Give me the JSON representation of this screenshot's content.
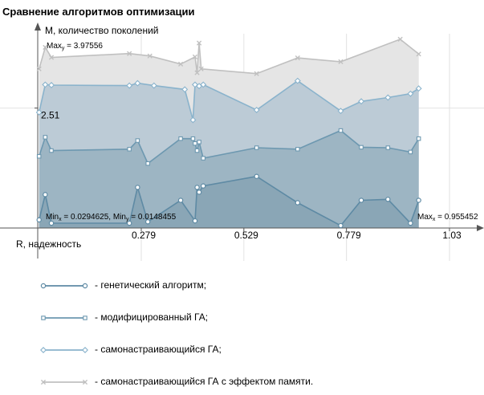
{
  "chart_data": {
    "type": "area",
    "title": "Сравнение алгоритмов оптимизации",
    "xlabel": "R, надежность",
    "ylabel": "M, количество поколений",
    "xlim": [
      0.0294625,
      1.05
    ],
    "ylim": [
      0,
      4.2
    ],
    "x_ticks": [
      0.279,
      0.529,
      0.779,
      1.03
    ],
    "y_marker_label": "2.51",
    "y_marker_value": 2.51,
    "annotations": {
      "max_y": "Max",
      "max_y_sub": "y",
      "max_y_value": " = 3.97556",
      "min_x": "Min",
      "min_x_sub": "x",
      "min_x_value": " = 0.0294625, ",
      "min_y": "Min",
      "min_y_sub": "y",
      "min_y_value": " = 0.0148455",
      "max_x": "Max",
      "max_x_sub": "x",
      "max_x_value": " = 0.955452"
    },
    "series": [
      {
        "name": "самонастраивающийся ГА с эффектом памяти.",
        "marker": "cross",
        "color": "#c0c0c0",
        "fill": "#e5e5e5",
        "points": [
          [
            0.03,
            3.33
          ],
          [
            0.045,
            3.78
          ],
          [
            0.06,
            3.57
          ],
          [
            0.25,
            3.65
          ],
          [
            0.3,
            3.6
          ],
          [
            0.375,
            3.43
          ],
          [
            0.41,
            3.58
          ],
          [
            0.415,
            3.25
          ],
          [
            0.42,
            3.87
          ],
          [
            0.425,
            3.33
          ],
          [
            0.56,
            3.23
          ],
          [
            0.66,
            3.56
          ],
          [
            0.765,
            3.48
          ],
          [
            0.91,
            3.95
          ],
          [
            0.955,
            3.64
          ]
        ]
      },
      {
        "name": "самонастраивающийся ГА;",
        "marker": "diamond",
        "color": "#8ab3cc",
        "fill": "#bccbd6",
        "points": [
          [
            0.03,
            2.42
          ],
          [
            0.045,
            3.0
          ],
          [
            0.06,
            2.99
          ],
          [
            0.25,
            2.98
          ],
          [
            0.27,
            3.03
          ],
          [
            0.31,
            2.98
          ],
          [
            0.385,
            2.9
          ],
          [
            0.405,
            2.26
          ],
          [
            0.41,
            3.0
          ],
          [
            0.42,
            2.97
          ],
          [
            0.43,
            3.0
          ],
          [
            0.56,
            2.47
          ],
          [
            0.66,
            3.08
          ],
          [
            0.765,
            2.45
          ],
          [
            0.815,
            2.65
          ],
          [
            0.88,
            2.73
          ],
          [
            0.935,
            2.81
          ],
          [
            0.955,
            2.92
          ]
        ]
      },
      {
        "name": "модифицированный ГА;",
        "marker": "square",
        "color": "#6d98b0",
        "fill": "#9db5c3",
        "points": [
          [
            0.03,
            1.5
          ],
          [
            0.045,
            1.9
          ],
          [
            0.06,
            1.62
          ],
          [
            0.25,
            1.65
          ],
          [
            0.27,
            1.83
          ],
          [
            0.295,
            1.35
          ],
          [
            0.375,
            1.87
          ],
          [
            0.405,
            1.87
          ],
          [
            0.41,
            1.77
          ],
          [
            0.415,
            1.62
          ],
          [
            0.42,
            1.8
          ],
          [
            0.43,
            1.46
          ],
          [
            0.56,
            1.68
          ],
          [
            0.66,
            1.65
          ],
          [
            0.765,
            2.04
          ],
          [
            0.815,
            1.69
          ],
          [
            0.88,
            1.68
          ],
          [
            0.935,
            1.59
          ],
          [
            0.955,
            1.87
          ]
        ]
      },
      {
        "name": "генетический алгоритм;",
        "marker": "circle",
        "color": "#5e8aa4",
        "fill": "#8aa6b6",
        "points": [
          [
            0.03,
            0.17
          ],
          [
            0.045,
            0.7
          ],
          [
            0.06,
            0.1
          ],
          [
            0.25,
            0.1
          ],
          [
            0.27,
            0.85
          ],
          [
            0.295,
            0.13
          ],
          [
            0.375,
            0.58
          ],
          [
            0.41,
            0.15
          ],
          [
            0.415,
            0.85
          ],
          [
            0.42,
            0.75
          ],
          [
            0.43,
            0.88
          ],
          [
            0.56,
            1.08
          ],
          [
            0.66,
            0.53
          ],
          [
            0.765,
            0.05
          ],
          [
            0.815,
            0.58
          ],
          [
            0.88,
            0.6
          ],
          [
            0.935,
            0.1
          ],
          [
            0.955,
            0.58
          ]
        ]
      }
    ],
    "grid": true,
    "legend_position": "bottom"
  }
}
